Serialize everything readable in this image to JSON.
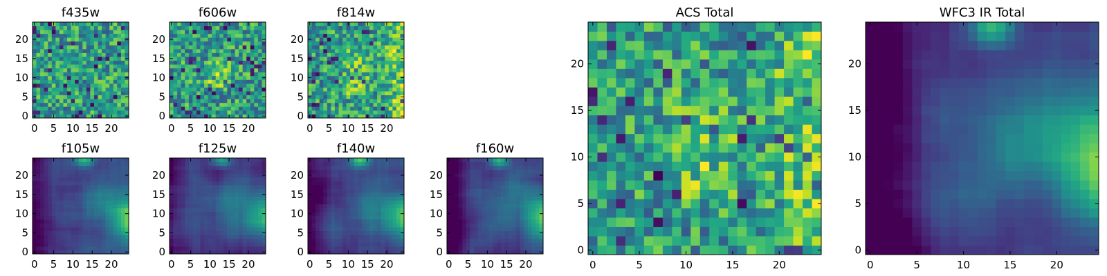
{
  "chart_data": [
    {
      "type": "heatmap",
      "title": "f435w",
      "pattern": "noise",
      "seed": 11,
      "tick_labels_x": [
        "0",
        "5",
        "10",
        "15",
        "20"
      ],
      "tick_labels_y": [
        "0",
        "5",
        "10",
        "15",
        "20"
      ],
      "xlim": [
        -0.5,
        24.5
      ],
      "ylim": [
        -0.5,
        24.5
      ]
    },
    {
      "type": "heatmap",
      "title": "f606w",
      "pattern": "noise_blob",
      "seed": 23,
      "tick_labels_x": [
        "0",
        "5",
        "10",
        "15",
        "20"
      ],
      "tick_labels_y": [
        "0",
        "5",
        "10",
        "15",
        "20"
      ],
      "xlim": [
        -0.5,
        24.5
      ],
      "ylim": [
        -0.5,
        24.5
      ]
    },
    {
      "type": "heatmap",
      "title": "f814w",
      "pattern": "noise_edge",
      "seed": 37,
      "tick_labels_x": [
        "0",
        "5",
        "10",
        "15",
        "20"
      ],
      "tick_labels_y": [
        "0",
        "5",
        "10",
        "15",
        "20"
      ],
      "xlim": [
        -0.5,
        24.5
      ],
      "ylim": [
        -0.5,
        24.5
      ]
    },
    {
      "type": "heatmap",
      "title": "f105w",
      "pattern": "smooth",
      "seed": 41,
      "tick_labels_x": [
        "0",
        "5",
        "10",
        "15",
        "20"
      ],
      "tick_labels_y": [
        "0",
        "5",
        "10",
        "15",
        "20"
      ],
      "xlim": [
        -0.5,
        24.5
      ],
      "ylim": [
        -0.5,
        24.5
      ]
    },
    {
      "type": "heatmap",
      "title": "f125w",
      "pattern": "smooth",
      "seed": 53,
      "tick_labels_x": [
        "0",
        "5",
        "10",
        "15",
        "20"
      ],
      "tick_labels_y": [
        "0",
        "5",
        "10",
        "15",
        "20"
      ],
      "xlim": [
        -0.5,
        24.5
      ],
      "ylim": [
        -0.5,
        24.5
      ]
    },
    {
      "type": "heatmap",
      "title": "f140w",
      "pattern": "smooth",
      "seed": 67,
      "tick_labels_x": [
        "0",
        "5",
        "10",
        "15",
        "20"
      ],
      "tick_labels_y": [
        "0",
        "5",
        "10",
        "15",
        "20"
      ],
      "xlim": [
        -0.5,
        24.5
      ],
      "ylim": [
        -0.5,
        24.5
      ]
    },
    {
      "type": "heatmap",
      "title": "f160w",
      "pattern": "smooth_dark",
      "seed": 71,
      "tick_labels_x": [
        "0",
        "5",
        "10",
        "15",
        "20"
      ],
      "tick_labels_y": [
        "0",
        "5",
        "10",
        "15",
        "20"
      ],
      "xlim": [
        -0.5,
        24.5
      ],
      "ylim": [
        -0.5,
        24.5
      ]
    },
    {
      "type": "heatmap",
      "title": "ACS Total",
      "pattern": "noise_edge",
      "seed": 83,
      "tick_labels_x": [
        "0",
        "5",
        "10",
        "15",
        "20"
      ],
      "tick_labels_y": [
        "0",
        "5",
        "10",
        "15",
        "20"
      ],
      "xlim": [
        -0.5,
        24.5
      ],
      "ylim": [
        -0.5,
        24.5
      ]
    },
    {
      "type": "heatmap",
      "title": "WFC3 IR Total",
      "pattern": "smooth_dark",
      "seed": 97,
      "tick_labels_x": [
        "0",
        "5",
        "10",
        "15",
        "20"
      ],
      "tick_labels_y": [
        "0",
        "5",
        "10",
        "15",
        "20"
      ],
      "xlim": [
        -0.5,
        24.5
      ],
      "ylim": [
        -0.5,
        24.5
      ]
    }
  ],
  "colormap": "viridis"
}
